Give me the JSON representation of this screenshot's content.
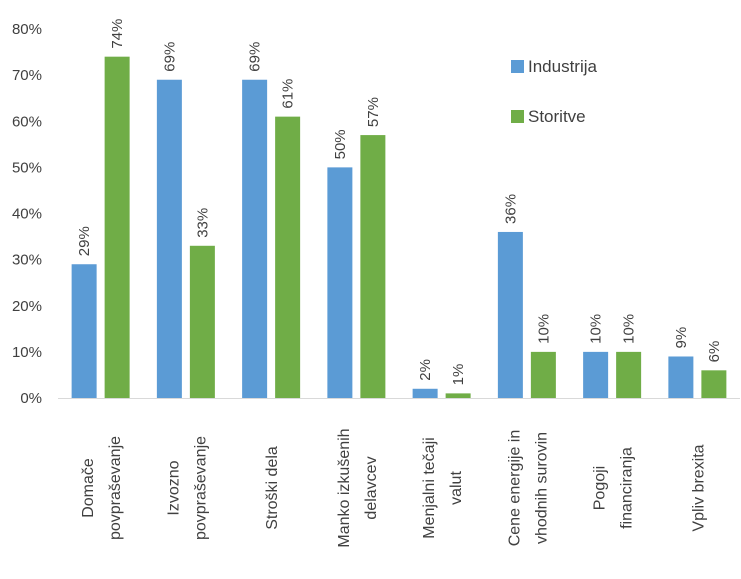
{
  "chart_data": {
    "type": "bar",
    "title": "",
    "xlabel": "",
    "ylabel": "",
    "ylim": [
      0,
      80
    ],
    "yticks": [
      "0%",
      "10%",
      "20%",
      "30%",
      "40%",
      "50%",
      "60%",
      "70%",
      "80%"
    ],
    "grid": false,
    "legend_position": "top-right",
    "categories": [
      [
        "Domače",
        "povpraševanje"
      ],
      [
        "Izvozno",
        "povpraševanje"
      ],
      [
        "Stroški dela"
      ],
      [
        "Manko izkušenih",
        "delavcev"
      ],
      [
        "Menjalni tečaji",
        "valut"
      ],
      [
        "Cene energije in",
        "vhodnih surovin"
      ],
      [
        "Pogoji",
        "financiranja"
      ],
      [
        "Vpliv brexita"
      ]
    ],
    "series": [
      {
        "name": "Industrija",
        "color": "#5b9bd5",
        "values": [
          29,
          69,
          69,
          50,
          2,
          36,
          10,
          9
        ],
        "labels": [
          "29%",
          "69%",
          "69%",
          "50%",
          "2%",
          "36%",
          "10%",
          "9%"
        ]
      },
      {
        "name": "Storitve",
        "color": "#70ad47",
        "values": [
          74,
          33,
          61,
          57,
          1,
          10,
          10,
          6
        ],
        "labels": [
          "74%",
          "33%",
          "61%",
          "57%",
          "1%",
          "10%",
          "10%",
          "6%"
        ]
      }
    ]
  }
}
